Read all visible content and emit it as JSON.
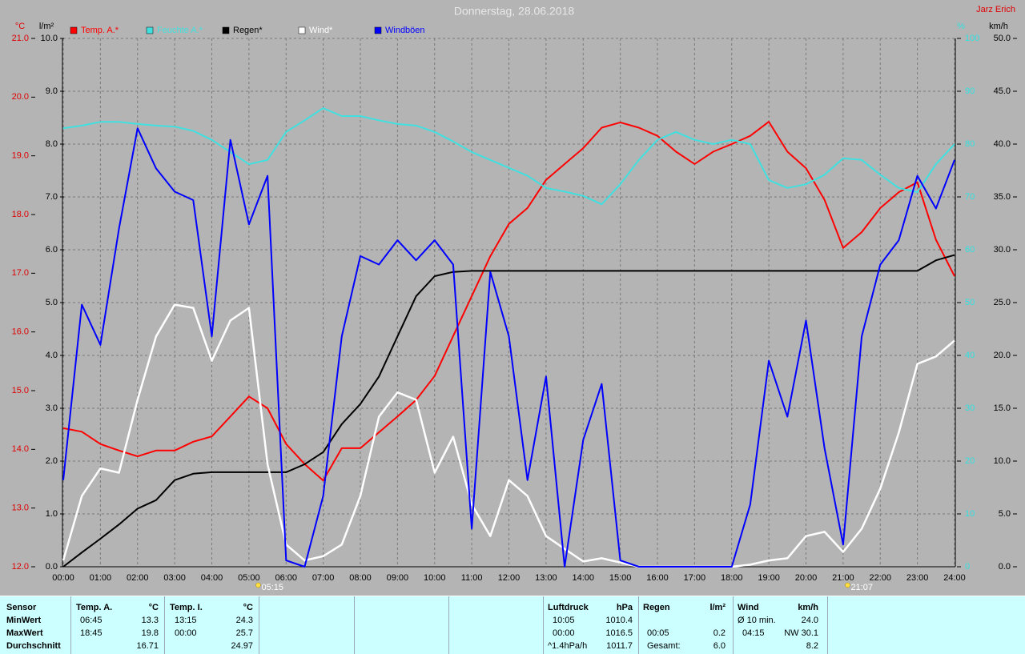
{
  "title": "Donnerstag, 28.06.2018",
  "author": "Jarz Erich",
  "chart_data": {
    "type": "line",
    "axis_labels": {
      "y": "°C",
      "y2": "l/m²",
      "y3": "%",
      "y4": "km/h"
    },
    "x": [
      0,
      0.5,
      1,
      1.5,
      2,
      2.5,
      3,
      3.5,
      4,
      4.5,
      5,
      5.5,
      6,
      6.5,
      7,
      7.5,
      8,
      8.5,
      9,
      9.5,
      10,
      10.5,
      11,
      11.5,
      12,
      12.5,
      13,
      13.5,
      14,
      14.5,
      15,
      15.5,
      16,
      16.5,
      17,
      17.5,
      18,
      18.5,
      19,
      19.5,
      20,
      20.5,
      21,
      21.5,
      22,
      22.5,
      23,
      23.5,
      24
    ],
    "xlim": [
      0,
      24
    ],
    "xticks": [
      {
        "value": 0,
        "label": "00:00"
      },
      {
        "value": 1,
        "label": "01:00"
      },
      {
        "value": 2,
        "label": "02:00"
      },
      {
        "value": 3,
        "label": "03:00"
      },
      {
        "value": 4,
        "label": "04:00"
      },
      {
        "value": 5,
        "label": "05:00"
      },
      {
        "value": 6,
        "label": "06:00"
      },
      {
        "value": 7,
        "label": "07:00"
      },
      {
        "value": 8,
        "label": "08:00"
      },
      {
        "value": 9,
        "label": "09:00"
      },
      {
        "value": 10,
        "label": "10:00"
      },
      {
        "value": 11,
        "label": "11:00"
      },
      {
        "value": 12,
        "label": "12:00"
      },
      {
        "value": 13,
        "label": "13:00"
      },
      {
        "value": 14,
        "label": "14:00"
      },
      {
        "value": 15,
        "label": "15:00"
      },
      {
        "value": 16,
        "label": "16:00"
      },
      {
        "value": 17,
        "label": "17:00"
      },
      {
        "value": 18,
        "label": "18:00"
      },
      {
        "value": 19,
        "label": "19:00"
      },
      {
        "value": 20,
        "label": "20:00"
      },
      {
        "value": 21,
        "label": "21:00"
      },
      {
        "value": 22,
        "label": "22:00"
      },
      {
        "value": 23,
        "label": "23:00"
      },
      {
        "value": 24,
        "label": "24:00"
      }
    ],
    "ylim": [
      12,
      21
    ],
    "yticks": [
      {
        "value": 12,
        "label": "12.0"
      },
      {
        "value": 13,
        "label": "13.0"
      },
      {
        "value": 14,
        "label": "14.0"
      },
      {
        "value": 15,
        "label": "15.0"
      },
      {
        "value": 16,
        "label": "16.0"
      },
      {
        "value": 17,
        "label": "17.0"
      },
      {
        "value": 18,
        "label": "18.0"
      },
      {
        "value": 19,
        "label": "19.0"
      },
      {
        "value": 20,
        "label": "20.0"
      },
      {
        "value": 21,
        "label": "21.0"
      }
    ],
    "y2lim": [
      0,
      10
    ],
    "y2ticks": [
      {
        "value": 0,
        "label": "0.0"
      },
      {
        "value": 1,
        "label": "1.0"
      },
      {
        "value": 2,
        "label": "2.0"
      },
      {
        "value": 3,
        "label": "3.0"
      },
      {
        "value": 4,
        "label": "4.0"
      },
      {
        "value": 5,
        "label": "5.0"
      },
      {
        "value": 6,
        "label": "6.0"
      },
      {
        "value": 7,
        "label": "7.0"
      },
      {
        "value": 8,
        "label": "8.0"
      },
      {
        "value": 9,
        "label": "9.0"
      },
      {
        "value": 10,
        "label": "10.0"
      }
    ],
    "y3lim": [
      0,
      100
    ],
    "y3ticks": [
      0,
      10,
      20,
      30,
      40,
      50,
      60,
      70,
      80,
      90,
      100
    ],
    "y4lim": [
      0,
      50
    ],
    "y4ticks": [
      {
        "value": 0,
        "label": "0.0"
      },
      {
        "value": 5,
        "label": "5.0"
      },
      {
        "value": 10,
        "label": "10.0"
      },
      {
        "value": 15,
        "label": "15.0"
      },
      {
        "value": 20,
        "label": "20.0"
      },
      {
        "value": 25,
        "label": "25.0"
      },
      {
        "value": 30,
        "label": "30.0"
      },
      {
        "value": 35,
        "label": "35.0"
      },
      {
        "value": 40,
        "label": "40.0"
      },
      {
        "value": 45,
        "label": "45.0"
      },
      {
        "value": 50,
        "label": "50.0"
      }
    ],
    "grid": true,
    "series": [
      {
        "name": "Temp. A.*",
        "color": "#ff0000",
        "axis": "y",
        "values": [
          14.36,
          14.3,
          14.09,
          13.98,
          13.88,
          13.98,
          13.98,
          14.13,
          14.22,
          14.56,
          14.9,
          14.7,
          14.09,
          13.75,
          13.47,
          14.02,
          14.02,
          14.29,
          14.56,
          14.84,
          15.25,
          15.93,
          16.61,
          17.29,
          17.84,
          18.11,
          18.59,
          18.86,
          19.13,
          19.48,
          19.57,
          19.48,
          19.34,
          19.07,
          18.86,
          19.07,
          19.2,
          19.34,
          19.58,
          19.07,
          18.79,
          18.25,
          17.43,
          17.7,
          18.11,
          18.38,
          18.55,
          17.57,
          16.95
        ]
      },
      {
        "name": "Feuchte A.*",
        "color": "#40e0e0",
        "axis": "y3",
        "values": [
          83,
          83.5,
          84.2,
          84.2,
          83.8,
          83.5,
          83.3,
          82.5,
          80.8,
          78.5,
          76.2,
          77,
          82.3,
          84.5,
          86.8,
          85.3,
          85.3,
          84.5,
          83.8,
          83.5,
          82.3,
          80.5,
          78.5,
          77,
          75.5,
          74,
          71.7,
          71,
          70.2,
          68.6,
          72.4,
          77,
          80.8,
          82.3,
          80.8,
          80,
          80.8,
          80,
          73.2,
          71.7,
          72.4,
          74.2,
          77.3,
          77,
          74.2,
          71.7,
          70.9,
          76.2,
          80
        ]
      },
      {
        "name": "Regen*",
        "color": "#000000",
        "axis": "y2",
        "values": [
          0,
          0.27,
          0.53,
          0.8,
          1.1,
          1.26,
          1.64,
          1.76,
          1.79,
          1.79,
          1.79,
          1.79,
          1.79,
          1.94,
          2.17,
          2.7,
          3.08,
          3.6,
          4.36,
          5.12,
          5.5,
          5.58,
          5.6,
          5.6,
          5.6,
          5.6,
          5.6,
          5.6,
          5.6,
          5.6,
          5.6,
          5.6,
          5.6,
          5.6,
          5.6,
          5.6,
          5.6,
          5.6,
          5.6,
          5.6,
          5.6,
          5.6,
          5.6,
          5.6,
          5.6,
          5.6,
          5.6,
          5.8,
          5.9
        ]
      },
      {
        "name": "Wind*",
        "color": "#ffffff",
        "axis": "y4",
        "values": [
          0.6,
          6.7,
          9.3,
          8.9,
          15.8,
          21.8,
          24.8,
          24.5,
          19.5,
          23.3,
          24.5,
          9.7,
          2.1,
          0.6,
          1,
          2.1,
          6.7,
          14.2,
          16.5,
          15.8,
          8.9,
          12.3,
          5.9,
          2.9,
          8.2,
          6.7,
          2.9,
          1.7,
          0.5,
          0.8,
          0.4,
          0,
          0,
          0,
          0,
          0,
          0,
          0.2,
          0.6,
          0.8,
          2.9,
          3.3,
          1.4,
          3.6,
          7.4,
          12.7,
          19.2,
          19.9,
          21.4
        ]
      },
      {
        "name": "Windböen",
        "color": "#0000ff",
        "axis": "y4",
        "values": [
          8.2,
          24.8,
          21,
          32,
          41.5,
          37.7,
          35.5,
          34.7,
          21.8,
          40.4,
          32.4,
          37,
          0.6,
          0,
          6.7,
          21.8,
          29.4,
          28.6,
          30.9,
          29,
          30.9,
          28.6,
          3.6,
          27.9,
          21.8,
          8.2,
          18,
          0,
          12,
          17.3,
          0.6,
          0,
          0,
          0,
          0,
          0,
          0,
          5.9,
          19.5,
          14.2,
          23.3,
          11.2,
          2.1,
          21.8,
          28.6,
          30.9,
          37,
          33.9,
          38.5
        ]
      }
    ],
    "annotations": [
      {
        "x": 5.25,
        "label": "05:15"
      },
      {
        "x": 21.12,
        "label": "21:07"
      }
    ]
  },
  "table": {
    "sensor": [
      "Sensor",
      "MinWert",
      "MaxWert",
      "Durchschnitt"
    ],
    "temp_a": {
      "header": [
        "Temp. A.",
        "°C"
      ],
      "min": [
        "06:45",
        "13.3"
      ],
      "max": [
        "18:45",
        "19.8"
      ],
      "avg": "16.71"
    },
    "temp_i": {
      "header": [
        "Temp. I.",
        "°C"
      ],
      "min": [
        "13:15",
        "24.3"
      ],
      "max": [
        "00:00",
        "25.7"
      ],
      "avg": "24.97"
    },
    "pressure": {
      "header": [
        "Luftdruck",
        "hPa"
      ],
      "min": [
        "10:05",
        "1010.4"
      ],
      "max": [
        "00:00",
        "1016.5"
      ],
      "avg": [
        "^1.4hPa/h",
        "1011.7"
      ]
    },
    "rain": {
      "header": [
        "Regen",
        "l/m²"
      ],
      "max": [
        "00:05",
        "0.2"
      ],
      "avg": [
        "Gesamt:",
        "6.0"
      ]
    },
    "wind": {
      "header": [
        "Wind",
        "km/h"
      ],
      "min": [
        "Ø 10 min.",
        "24.0"
      ],
      "max": [
        "04:15",
        "NW 30.1"
      ],
      "avg": "8.2"
    }
  }
}
